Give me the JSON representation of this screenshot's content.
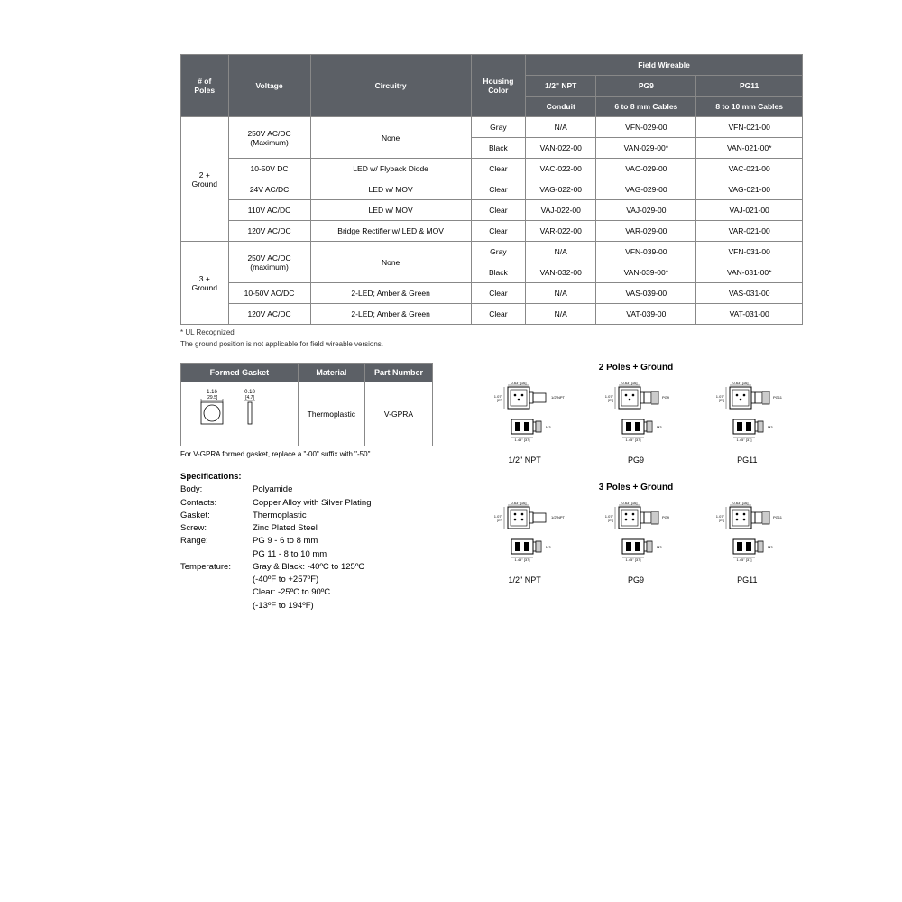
{
  "mainTable": {
    "headers": {
      "poles": "# of\nPoles",
      "voltage": "Voltage",
      "circuitry": "Circuitry",
      "housing": "Housing\nColor",
      "fieldWireable": "Field Wireable",
      "npt": "1/2\" NPT",
      "pg9": "PG9",
      "pg11": "PG11",
      "conduit": "Conduit",
      "cables68": "6 to 8 mm Cables",
      "cables810": "8 to 10 mm Cables"
    },
    "rows": [
      {
        "poles": "2 +\nGround",
        "voltage": "250V AC/DC\n(Maximum)",
        "circuitry": "None",
        "housing": "Gray",
        "npt": "N/A",
        "pg9": "VFN-029-00",
        "pg11": "VFN-021-00",
        "polesRowspan": 6,
        "voltRowspan": 2,
        "circRowspan": 2
      },
      {
        "housing": "Black",
        "npt": "VAN-022-00",
        "pg9": "VAN-029-00*",
        "pg11": "VAN-021-00*"
      },
      {
        "voltage": "10-50V DC",
        "circuitry": "LED w/ Flyback Diode",
        "housing": "Clear",
        "npt": "VAC-022-00",
        "pg9": "VAC-029-00",
        "pg11": "VAC-021-00"
      },
      {
        "voltage": "24V AC/DC",
        "circuitry": "LED w/ MOV",
        "housing": "Clear",
        "npt": "VAG-022-00",
        "pg9": "VAG-029-00",
        "pg11": "VAG-021-00"
      },
      {
        "voltage": "110V AC/DC",
        "circuitry": "LED w/ MOV",
        "housing": "Clear",
        "npt": "VAJ-022-00",
        "pg9": "VAJ-029-00",
        "pg11": "VAJ-021-00"
      },
      {
        "voltage": "120V AC/DC",
        "circuitry": "Bridge Rectifier w/ LED & MOV",
        "housing": "Clear",
        "npt": "VAR-022-00",
        "pg9": "VAR-029-00",
        "pg11": "VAR-021-00"
      },
      {
        "poles": "3 +\nGround",
        "voltage": "250V AC/DC\n(maximum)",
        "circuitry": "None",
        "housing": "Gray",
        "npt": "N/A",
        "pg9": "VFN-039-00",
        "pg11": "VFN-031-00",
        "polesRowspan": 4,
        "voltRowspan": 2,
        "circRowspan": 2
      },
      {
        "housing": "Black",
        "npt": "VAN-032-00",
        "pg9": "VAN-039-00*",
        "pg11": "VAN-031-00*"
      },
      {
        "voltage": "10-50V AC/DC",
        "circuitry": "2-LED; Amber & Green",
        "housing": "Clear",
        "npt": "N/A",
        "pg9": "VAS-039-00",
        "pg11": "VAS-031-00"
      },
      {
        "voltage": "120V AC/DC",
        "circuitry": "2-LED; Amber & Green",
        "housing": "Clear",
        "npt": "N/A",
        "pg9": "VAT-039-00",
        "pg11": "VAT-031-00"
      }
    ]
  },
  "footnotes": {
    "ul": "* UL Recognized",
    "ground": "The ground position is not applicable for field wireable versions."
  },
  "gasketTable": {
    "headers": {
      "gasket": "Formed Gasket",
      "material": "Material",
      "part": "Part Number"
    },
    "dims": {
      "w": "1.16\n[29.5]",
      "t": "0.18\n[4.7]"
    },
    "material": "Thermoplastic",
    "part": "V-GPRA",
    "note": "For V-GPRA formed gasket, replace a \"-00\" suffix with \"-50\"."
  },
  "specs": {
    "title": "Specifications:",
    "items": [
      {
        "k": "Body:",
        "v": "Polyamide"
      },
      {
        "k": "Contacts:",
        "v": "Copper Alloy with Silver Plating"
      },
      {
        "k": "Gasket:",
        "v": "Thermoplastic"
      },
      {
        "k": "Screw:",
        "v": "Zinc Plated Steel"
      },
      {
        "k": "Range:",
        "v": "PG 9 - 6 to 8 mm"
      },
      {
        "k": "",
        "v": "PG 11 - 8 to 10 mm"
      },
      {
        "k": "Temperature:",
        "v": "Gray & Black: -40ºC to 125ºC"
      },
      {
        "k": "",
        "v": "(-40ºF to +257ºF)"
      },
      {
        "k": "",
        "v": "Clear: -25ºC to 90ºC"
      },
      {
        "k": "",
        "v": "(-13ºF to 194ºF)"
      }
    ]
  },
  "diagrams": {
    "group1": {
      "title": "2 Poles + Ground",
      "labels": [
        "1/2\" NPT",
        "PG9",
        "PG11"
      ]
    },
    "group2": {
      "title": "3 Poles + Ground",
      "labels": [
        "1/2\" NPT",
        "PG9",
        "PG11"
      ]
    },
    "dims": {
      "a": "0.63\" [16]",
      "b": "1.07\" [27]",
      "c": "1.45\" [37]",
      "d": "1/2\"NPT",
      "e": "PG9",
      "f": "PG11"
    }
  }
}
